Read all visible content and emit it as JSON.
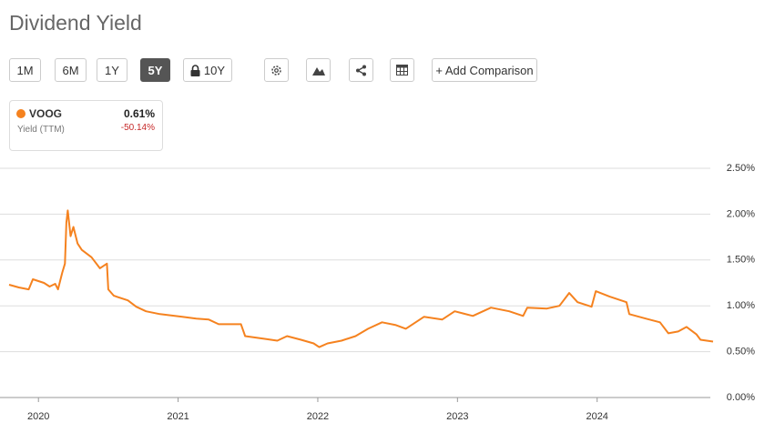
{
  "header": {
    "title": "Dividend Yield"
  },
  "toolbar": {
    "ranges": [
      "1M",
      "6M",
      "1Y",
      "5Y",
      "10Y"
    ],
    "active_index": 3,
    "add_comparison": "+ Add Comparison"
  },
  "legend_card": {
    "current": "0.61%",
    "metric": "Yield (TTM)",
    "change": "-50.14%"
  },
  "chart_data": {
    "type": "line",
    "x": [
      2019.79,
      2019.86,
      2019.93,
      2019.96,
      2020.04,
      2020.08,
      2020.12,
      2020.14,
      2020.17,
      2020.19,
      2020.2,
      2020.21,
      2020.23,
      2020.25,
      2020.28,
      2020.31,
      2020.38,
      2020.44,
      2020.49,
      2020.5,
      2020.54,
      2020.64,
      2020.7,
      2020.77,
      2020.87,
      2021.03,
      2021.13,
      2021.22,
      2021.29,
      2021.45,
      2021.48,
      2021.62,
      2021.71,
      2021.78,
      2021.88,
      2021.97,
      2022.01,
      2022.07,
      2022.17,
      2022.27,
      2022.36,
      2022.46,
      2022.56,
      2022.63,
      2022.76,
      2022.89,
      2022.98,
      2023.11,
      2023.24,
      2023.37,
      2023.47,
      2023.5,
      2023.64,
      2023.73,
      2023.8,
      2023.86,
      2023.96,
      2023.99,
      2024.09,
      2024.21,
      2024.23,
      2024.35,
      2024.45,
      2024.51,
      2024.58,
      2024.64,
      2024.71,
      2024.74,
      2024.83
    ],
    "series": [
      {
        "name": "VOOG",
        "color": "#f5821f",
        "values": [
          1.23,
          1.2,
          1.18,
          1.29,
          1.25,
          1.21,
          1.24,
          1.18,
          1.36,
          1.46,
          1.91,
          2.04,
          1.76,
          1.86,
          1.68,
          1.61,
          1.53,
          1.41,
          1.46,
          1.18,
          1.11,
          1.06,
          0.99,
          0.94,
          0.91,
          0.88,
          0.86,
          0.85,
          0.8,
          0.8,
          0.67,
          0.64,
          0.62,
          0.67,
          0.63,
          0.59,
          0.55,
          0.59,
          0.62,
          0.67,
          0.75,
          0.82,
          0.79,
          0.75,
          0.88,
          0.85,
          0.94,
          0.89,
          0.98,
          0.94,
          0.89,
          0.98,
          0.97,
          1.0,
          1.14,
          1.04,
          0.99,
          1.16,
          1.1,
          1.04,
          0.91,
          0.86,
          0.82,
          0.7,
          0.72,
          0.77,
          0.69,
          0.63,
          0.61
        ]
      }
    ],
    "xlim": [
      2019.79,
      2024.83
    ],
    "xticks": [
      2020,
      2021,
      2022,
      2023,
      2024
    ],
    "ylim": [
      0,
      2.5
    ],
    "yticks": [
      {
        "value": 0,
        "label": "0.00%"
      },
      {
        "value": 0.5,
        "label": "0.50%"
      },
      {
        "value": 1,
        "label": "1.00%"
      },
      {
        "value": 1.5,
        "label": "1.50%"
      },
      {
        "value": 2,
        "label": "2.00%"
      },
      {
        "value": 2.5,
        "label": "2.50%"
      }
    ],
    "grid": true
  }
}
